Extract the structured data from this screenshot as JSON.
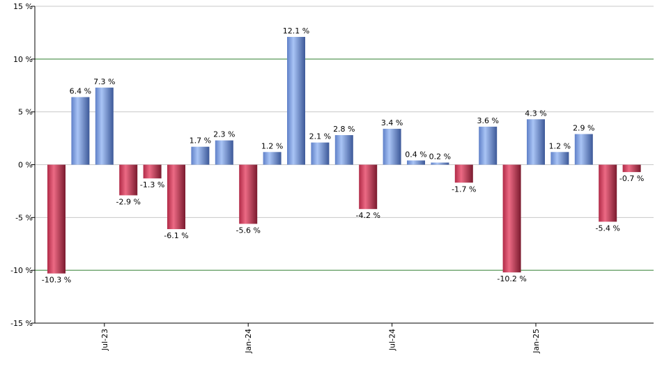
{
  "chart_data": {
    "type": "bar",
    "ylim": [
      -15,
      15
    ],
    "yticks": [
      {
        "value": 15,
        "label": "15 %"
      },
      {
        "value": 10,
        "label": "10 %"
      },
      {
        "value": 5,
        "label": "5 %"
      },
      {
        "value": 0,
        "label": "0 %"
      },
      {
        "value": -5,
        "label": "-5 %"
      },
      {
        "value": -10,
        "label": "-10 %"
      },
      {
        "value": -15,
        "label": "-15 %"
      }
    ],
    "highlight_lines": [
      10,
      -10
    ],
    "grid": true,
    "x_tick_labels": [
      {
        "index": 2,
        "label": "Jul-23"
      },
      {
        "index": 8,
        "label": "Jan-24"
      },
      {
        "index": 14,
        "label": "Jul-24"
      },
      {
        "index": 20,
        "label": "Jan-25"
      }
    ],
    "values": [
      -10.3,
      6.4,
      7.3,
      -2.9,
      -1.3,
      -6.1,
      1.7,
      2.3,
      -5.6,
      1.2,
      12.1,
      2.1,
      2.8,
      -4.2,
      3.4,
      0.4,
      0.2,
      -1.7,
      3.6,
      -10.2,
      4.3,
      1.2,
      2.9,
      -5.4,
      -0.7
    ],
    "labels": [
      "-10.3 %",
      "6.4 %",
      "7.3 %",
      "-2.9 %",
      "-1.3 %",
      "-6.1 %",
      "1.7 %",
      "2.3 %",
      "-5.6 %",
      "1.2 %",
      "12.1 %",
      "2.1 %",
      "2.8 %",
      "-4.2 %",
      "3.4 %",
      "0.4 %",
      "0.2 %",
      "-1.7 %",
      "3.6 %",
      "-10.2 %",
      "4.3 %",
      "1.2 %",
      "2.9 %",
      "-5.4 %",
      "-0.7 %"
    ],
    "colors": {
      "positive": "#7a9ee6",
      "positive_dark": "#3c5898",
      "negative": "#d8405e",
      "negative_dark": "#7a1a2e",
      "grid": "#c8c8c8",
      "highlight": "#2e7d2e",
      "axis": "#000000"
    }
  }
}
